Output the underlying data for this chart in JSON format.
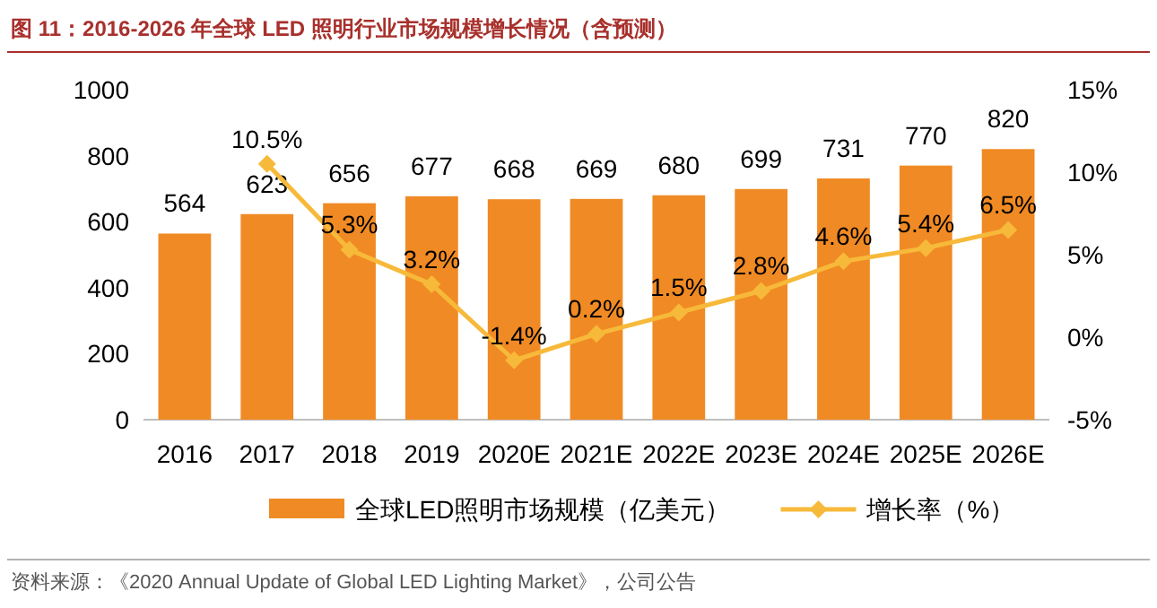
{
  "chart_data": {
    "type": "bar",
    "title": "图 11：2016-2026 年全球 LED 照明行业市场规模增长情况（含预测）",
    "categories": [
      "2016",
      "2017",
      "2018",
      "2019",
      "2020E",
      "2021E",
      "2022E",
      "2023E",
      "2024E",
      "2025E",
      "2026E"
    ],
    "series": [
      {
        "name": "全球LED照明市场规模（亿美元）",
        "color": "#f08a24",
        "values": [
          564,
          623,
          656,
          677,
          668,
          669,
          680,
          699,
          731,
          770,
          820
        ],
        "value_labels": [
          "564",
          "623",
          "656",
          "677",
          "668",
          "669",
          "680",
          "699",
          "731",
          "770",
          "820"
        ]
      },
      {
        "name": "增长率（%）",
        "type": "line",
        "axis": "y2",
        "color": "#f7b93a",
        "values": [
          null,
          10.5,
          5.3,
          3.2,
          -1.4,
          0.2,
          1.5,
          2.8,
          4.6,
          5.4,
          6.5
        ],
        "value_labels": [
          null,
          "10.5%",
          "5.3%",
          "3.2%",
          "-1.4%",
          "0.2%",
          "1.5%",
          "2.8%",
          "4.6%",
          "5.4%",
          "6.5%"
        ]
      }
    ],
    "ylim": [
      0,
      1000
    ],
    "yticks": [
      0,
      200,
      400,
      600,
      800,
      1000
    ],
    "y2lim": [
      -5,
      15
    ],
    "y2ticks": [
      {
        "value": -5,
        "label": "-5%"
      },
      {
        "value": 0,
        "label": "0%"
      },
      {
        "value": 5,
        "label": "5%"
      },
      {
        "value": 10,
        "label": "10%"
      },
      {
        "value": 15,
        "label": "15%"
      }
    ],
    "marker": "diamond",
    "legend": "bottom",
    "grid": false,
    "annotations": [
      "资料来源：《2020 Annual Update of Global LED Lighting Market》，公司公告"
    ]
  }
}
